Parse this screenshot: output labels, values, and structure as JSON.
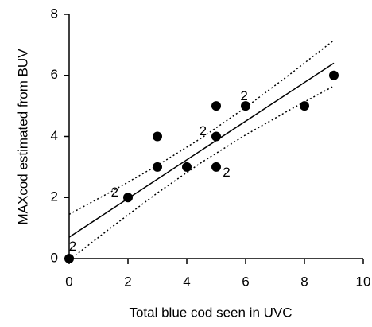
{
  "chart_data": {
    "type": "scatter",
    "xlabel": "Total blue cod seen in UVC",
    "ylabel": "MAXcod estimated from BUV",
    "xlim": [
      0,
      10
    ],
    "ylim": [
      0,
      8
    ],
    "xticks": [
      0,
      2,
      4,
      6,
      8,
      10
    ],
    "yticks": [
      0,
      2,
      4,
      6,
      8
    ],
    "series": [
      {
        "type": "scatter",
        "color": "#000000",
        "x": [
          0,
          2,
          3,
          3,
          4,
          5,
          5,
          5,
          6,
          8,
          9
        ],
        "values": [
          0,
          2,
          3,
          4,
          3,
          5,
          4,
          3,
          5,
          5,
          6
        ]
      },
      {
        "type": "line",
        "style": "solid",
        "color": "#000000",
        "x": [
          0,
          9
        ],
        "values": [
          0.7,
          6.4
        ]
      },
      {
        "type": "line",
        "style": "dotted",
        "color": "#000000",
        "x": [
          0,
          1.5,
          3,
          4.5,
          6,
          7.5,
          9
        ],
        "values": [
          1.45,
          2.23,
          3.05,
          3.95,
          4.95,
          6.03,
          7.15
        ]
      },
      {
        "type": "line",
        "style": "dotted",
        "color": "#000000",
        "x": [
          0,
          1.5,
          3,
          4.5,
          6,
          7.5,
          9
        ],
        "values": [
          -0.05,
          1.07,
          2.15,
          3.15,
          4.05,
          4.87,
          5.65
        ]
      }
    ],
    "annotations": [
      {
        "text": "2",
        "x": 0.12,
        "y": 0.38
      },
      {
        "text": "2",
        "x": 1.55,
        "y": 2.15
      },
      {
        "text": "2",
        "x": 4.55,
        "y": 4.15
      },
      {
        "text": "2",
        "x": 5.35,
        "y": 2.8
      },
      {
        "text": "2",
        "x": 5.95,
        "y": 5.3
      }
    ]
  }
}
